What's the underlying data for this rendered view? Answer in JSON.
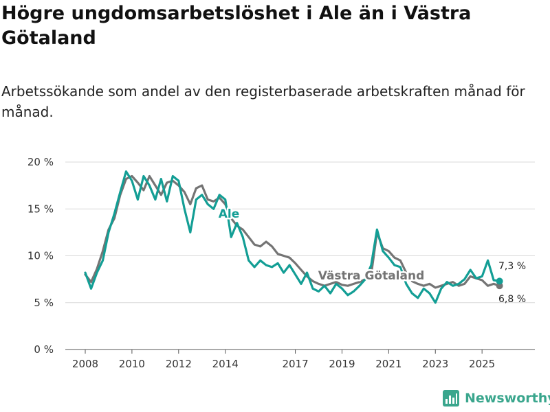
{
  "header": {
    "title": "Högre ungdomsarbetslöshet i Ale än i Västra Götaland",
    "subtitle": "Arbetssökande som andel av den registerbaserade arbetskraften månad för månad."
  },
  "branding": {
    "name": "Newsworthy"
  },
  "chart_data": {
    "type": "line",
    "title": "Högre ungdomsarbetslöshet i Ale än i Västra Götaland",
    "subtitle": "Arbetssökande som andel av den registerbaserade arbetskraften månad för månad.",
    "xlabel": "",
    "ylabel": "",
    "xlim": [
      2007.92,
      2025.75
    ],
    "ylim": [
      0,
      20
    ],
    "yticks": [
      {
        "value": 0,
        "label": "0 %"
      },
      {
        "value": 5,
        "label": "5 %"
      },
      {
        "value": 10,
        "label": "10 %"
      },
      {
        "value": 15,
        "label": "15 %"
      },
      {
        "value": 20,
        "label": "20 %"
      }
    ],
    "xticks": [
      {
        "value": 2008,
        "label": "2008"
      },
      {
        "value": 2010,
        "label": "2010"
      },
      {
        "value": 2012,
        "label": "2012"
      },
      {
        "value": 2014,
        "label": "2014"
      },
      {
        "value": 2017,
        "label": "2017"
      },
      {
        "value": 2019,
        "label": "2019"
      },
      {
        "value": 2021,
        "label": "2021"
      },
      {
        "value": 2023,
        "label": "2023"
      },
      {
        "value": 2025,
        "label": "2025"
      }
    ],
    "grid": true,
    "series": [
      {
        "name": "Västra Götaland",
        "color": "#747474",
        "end_label": "6,8 %",
        "points": [
          [
            2008.0,
            8.0
          ],
          [
            2008.25,
            7.2
          ],
          [
            2008.5,
            8.6
          ],
          [
            2008.75,
            10.5
          ],
          [
            2009.0,
            12.8
          ],
          [
            2009.25,
            14.0
          ],
          [
            2009.5,
            16.5
          ],
          [
            2009.75,
            18.2
          ],
          [
            2010.0,
            18.5
          ],
          [
            2010.25,
            17.8
          ],
          [
            2010.5,
            17.0
          ],
          [
            2010.75,
            18.5
          ],
          [
            2011.0,
            17.5
          ],
          [
            2011.25,
            16.5
          ],
          [
            2011.5,
            17.8
          ],
          [
            2011.75,
            18.0
          ],
          [
            2012.0,
            17.5
          ],
          [
            2012.25,
            16.8
          ],
          [
            2012.5,
            15.5
          ],
          [
            2012.75,
            17.2
          ],
          [
            2013.0,
            17.5
          ],
          [
            2013.25,
            16.0
          ],
          [
            2013.5,
            15.8
          ],
          [
            2013.75,
            16.2
          ],
          [
            2014.0,
            15.5
          ],
          [
            2014.25,
            14.0
          ],
          [
            2014.5,
            13.2
          ],
          [
            2014.75,
            12.8
          ],
          [
            2015.0,
            12.0
          ],
          [
            2015.25,
            11.2
          ],
          [
            2015.5,
            11.0
          ],
          [
            2015.75,
            11.5
          ],
          [
            2016.0,
            11.0
          ],
          [
            2016.25,
            10.2
          ],
          [
            2016.5,
            10.0
          ],
          [
            2016.75,
            9.8
          ],
          [
            2017.0,
            9.2
          ],
          [
            2017.25,
            8.5
          ],
          [
            2017.5,
            7.8
          ],
          [
            2017.75,
            7.3
          ],
          [
            2018.0,
            7.0
          ],
          [
            2018.25,
            6.8
          ],
          [
            2018.5,
            7.0
          ],
          [
            2018.75,
            7.2
          ],
          [
            2019.0,
            6.9
          ],
          [
            2019.25,
            6.8
          ],
          [
            2019.5,
            7.0
          ],
          [
            2019.75,
            7.2
          ],
          [
            2020.0,
            7.5
          ],
          [
            2020.25,
            8.0
          ],
          [
            2020.5,
            12.5
          ],
          [
            2020.75,
            10.8
          ],
          [
            2021.0,
            10.5
          ],
          [
            2021.25,
            9.8
          ],
          [
            2021.5,
            9.5
          ],
          [
            2021.75,
            8.2
          ],
          [
            2022.0,
            7.3
          ],
          [
            2022.25,
            7.0
          ],
          [
            2022.5,
            6.8
          ],
          [
            2022.75,
            7.0
          ],
          [
            2023.0,
            6.6
          ],
          [
            2023.25,
            6.8
          ],
          [
            2023.5,
            7.0
          ],
          [
            2023.75,
            7.2
          ],
          [
            2024.0,
            6.8
          ],
          [
            2024.25,
            7.0
          ],
          [
            2024.5,
            7.8
          ],
          [
            2024.75,
            7.6
          ],
          [
            2025.0,
            7.4
          ],
          [
            2025.25,
            6.8
          ],
          [
            2025.5,
            7.0
          ],
          [
            2025.75,
            6.8
          ]
        ]
      },
      {
        "name": "Ale",
        "color": "#139e95",
        "end_label": "7,3 %",
        "points": [
          [
            2008.0,
            8.2
          ],
          [
            2008.25,
            6.5
          ],
          [
            2008.5,
            8.2
          ],
          [
            2008.75,
            9.5
          ],
          [
            2009.0,
            12.5
          ],
          [
            2009.25,
            14.5
          ],
          [
            2009.5,
            16.8
          ],
          [
            2009.75,
            19.0
          ],
          [
            2010.0,
            18.0
          ],
          [
            2010.25,
            16.0
          ],
          [
            2010.5,
            18.5
          ],
          [
            2010.75,
            17.5
          ],
          [
            2011.0,
            16.0
          ],
          [
            2011.25,
            18.2
          ],
          [
            2011.5,
            15.8
          ],
          [
            2011.75,
            18.5
          ],
          [
            2012.0,
            18.0
          ],
          [
            2012.25,
            15.0
          ],
          [
            2012.5,
            12.5
          ],
          [
            2012.75,
            16.0
          ],
          [
            2013.0,
            16.5
          ],
          [
            2013.25,
            15.5
          ],
          [
            2013.5,
            15.0
          ],
          [
            2013.75,
            16.5
          ],
          [
            2014.0,
            16.0
          ],
          [
            2014.25,
            12.0
          ],
          [
            2014.5,
            13.5
          ],
          [
            2014.75,
            12.0
          ],
          [
            2015.0,
            9.5
          ],
          [
            2015.25,
            8.8
          ],
          [
            2015.5,
            9.5
          ],
          [
            2015.75,
            9.0
          ],
          [
            2016.0,
            8.8
          ],
          [
            2016.25,
            9.2
          ],
          [
            2016.5,
            8.2
          ],
          [
            2016.75,
            9.0
          ],
          [
            2017.0,
            8.0
          ],
          [
            2017.25,
            7.0
          ],
          [
            2017.5,
            8.2
          ],
          [
            2017.75,
            6.5
          ],
          [
            2018.0,
            6.2
          ],
          [
            2018.25,
            6.8
          ],
          [
            2018.5,
            6.0
          ],
          [
            2018.75,
            7.0
          ],
          [
            2019.0,
            6.5
          ],
          [
            2019.25,
            5.8
          ],
          [
            2019.5,
            6.2
          ],
          [
            2019.75,
            6.8
          ],
          [
            2020.0,
            7.5
          ],
          [
            2020.25,
            9.0
          ],
          [
            2020.5,
            12.8
          ],
          [
            2020.75,
            10.5
          ],
          [
            2021.0,
            9.8
          ],
          [
            2021.25,
            9.0
          ],
          [
            2021.5,
            8.8
          ],
          [
            2021.75,
            7.0
          ],
          [
            2022.0,
            6.0
          ],
          [
            2022.25,
            5.5
          ],
          [
            2022.5,
            6.5
          ],
          [
            2022.75,
            6.0
          ],
          [
            2023.0,
            5.0
          ],
          [
            2023.25,
            6.5
          ],
          [
            2023.5,
            7.2
          ],
          [
            2023.75,
            6.8
          ],
          [
            2024.0,
            7.0
          ],
          [
            2024.25,
            7.5
          ],
          [
            2024.5,
            8.5
          ],
          [
            2024.75,
            7.6
          ],
          [
            2025.0,
            7.8
          ],
          [
            2025.25,
            9.5
          ],
          [
            2025.5,
            7.4
          ],
          [
            2025.75,
            7.3
          ]
        ]
      }
    ]
  }
}
